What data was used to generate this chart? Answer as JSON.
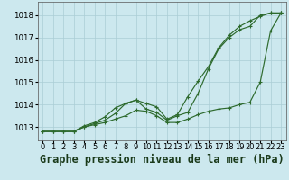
{
  "title": "Graphe pression niveau de la mer (hPa)",
  "xlabel_ticks": [
    "0",
    "1",
    "2",
    "3",
    "4",
    "5",
    "6",
    "7",
    "8",
    "9",
    "10",
    "11",
    "12",
    "13",
    "14",
    "15",
    "16",
    "17",
    "18",
    "19",
    "20",
    "21",
    "22",
    "23"
  ],
  "yticks": [
    1013,
    1014,
    1015,
    1016,
    1017,
    1018
  ],
  "ylim": [
    1012.4,
    1018.6
  ],
  "xlim": [
    -0.5,
    23.5
  ],
  "bg_color": "#cce8ee",
  "grid_color": "#aacdd5",
  "line_color": "#2d6a2d",
  "line1": [
    1012.8,
    1012.8,
    1012.8,
    1012.8,
    1013.0,
    1013.15,
    1013.3,
    1013.6,
    1014.05,
    1014.2,
    1013.8,
    1013.65,
    1013.3,
    1013.5,
    1013.65,
    1014.5,
    1015.6,
    1016.5,
    1017.0,
    1017.35,
    1017.5,
    1018.0,
    1018.1,
    1018.1
  ],
  "line2": [
    1012.8,
    1012.8,
    1012.8,
    1012.8,
    1013.05,
    1013.2,
    1013.45,
    1013.85,
    1014.05,
    1014.2,
    1014.05,
    1013.9,
    1013.35,
    1013.55,
    1014.35,
    1015.05,
    1015.7,
    1016.55,
    1017.1,
    1017.5,
    1017.75,
    1017.95,
    1018.1,
    1018.1
  ],
  "line3": [
    1012.8,
    1012.8,
    1012.8,
    1012.8,
    1013.0,
    1013.1,
    1013.2,
    1013.35,
    1013.5,
    1013.75,
    1013.7,
    1013.5,
    1013.2,
    1013.2,
    1013.35,
    1013.55,
    1013.7,
    1013.8,
    1013.85,
    1014.0,
    1014.1,
    1015.0,
    1017.3,
    1018.1
  ],
  "title_fontsize": 8.5,
  "tick_fontsize": 6.2
}
